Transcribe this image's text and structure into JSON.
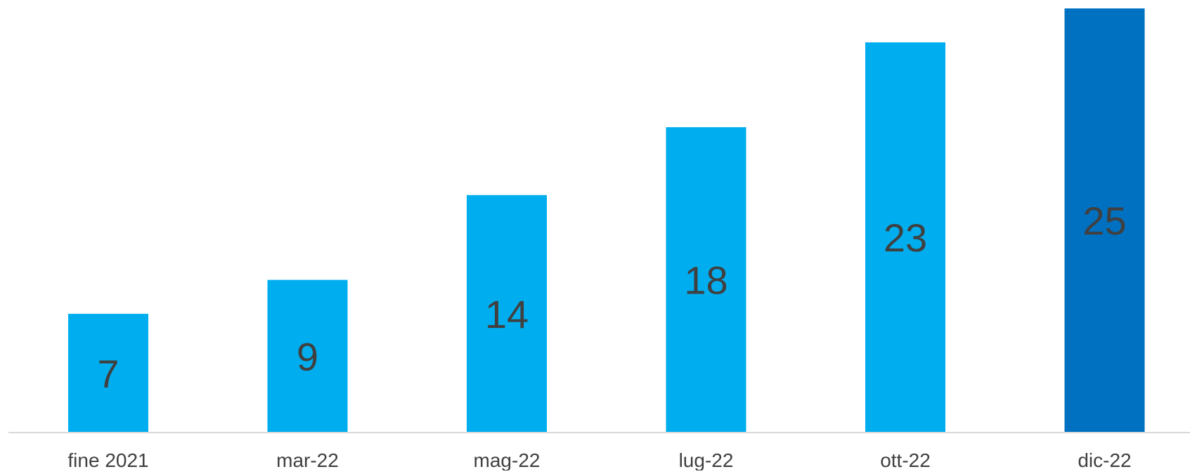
{
  "chart_data": {
    "type": "bar",
    "title": "",
    "xlabel": "",
    "ylabel": "",
    "categories": [
      "fine 2021",
      "mar-22",
      "mag-22",
      "lug-22",
      "ott-22",
      "dic-22"
    ],
    "values": [
      7,
      9,
      14,
      18,
      23,
      25
    ],
    "ylim": [
      0,
      25
    ],
    "grid": false,
    "legend": "none",
    "colors": {
      "bar": "#00AEEF",
      "highlight_bar": "#0070C0",
      "label": "#404040",
      "axis": "#D9D9D9"
    },
    "highlight_index": 5
  }
}
